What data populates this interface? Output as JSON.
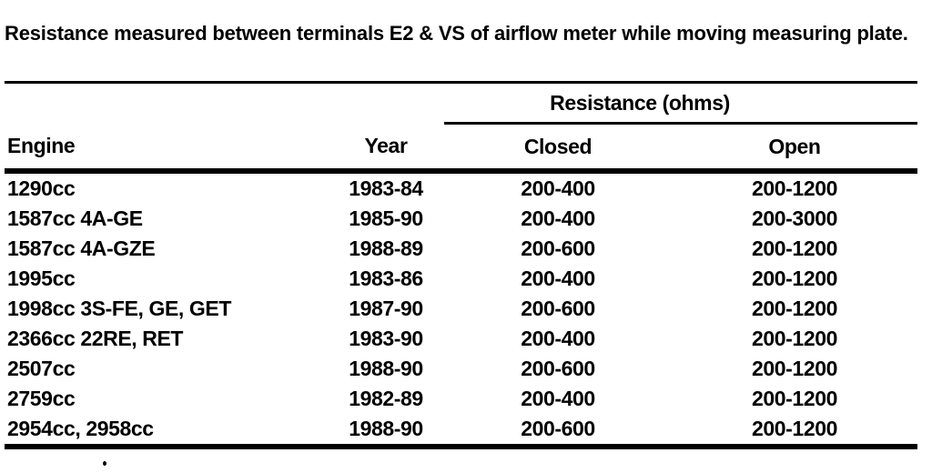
{
  "intro": "Resistance measured between terminals E2 & VS of airflow meter while moving measuring plate.",
  "table": {
    "group_header": "Resistance (ohms)",
    "columns": [
      "Engine",
      "Year",
      "Closed",
      "Open"
    ],
    "rows": [
      {
        "engine": "1290cc",
        "year": "1983-84",
        "closed": "200-400",
        "open": "200-1200"
      },
      {
        "engine": "1587cc 4A-GE",
        "year": "1985-90",
        "closed": "200-400",
        "open": "200-3000"
      },
      {
        "engine": "1587cc 4A-GZE",
        "year": "1988-89",
        "closed": "200-600",
        "open": "200-1200"
      },
      {
        "engine": "1995cc",
        "year": "1983-86",
        "closed": "200-400",
        "open": "200-1200"
      },
      {
        "engine": "1998cc 3S-FE, GE, GET",
        "year": "1987-90",
        "closed": "200-600",
        "open": "200-1200"
      },
      {
        "engine": "2366cc 22RE, RET",
        "year": "1983-90",
        "closed": "200-400",
        "open": "200-1200"
      },
      {
        "engine": "2507cc",
        "year": "1988-90",
        "closed": "200-600",
        "open": "200-1200"
      },
      {
        "engine": "2759cc",
        "year": "1982-89",
        "closed": "200-400",
        "open": "200-1200"
      },
      {
        "engine": "2954cc, 2958cc",
        "year": "1988-90",
        "closed": "200-600",
        "open": "200-1200"
      }
    ]
  },
  "colors": {
    "ink": "#000000",
    "paper": "#ffffff"
  }
}
